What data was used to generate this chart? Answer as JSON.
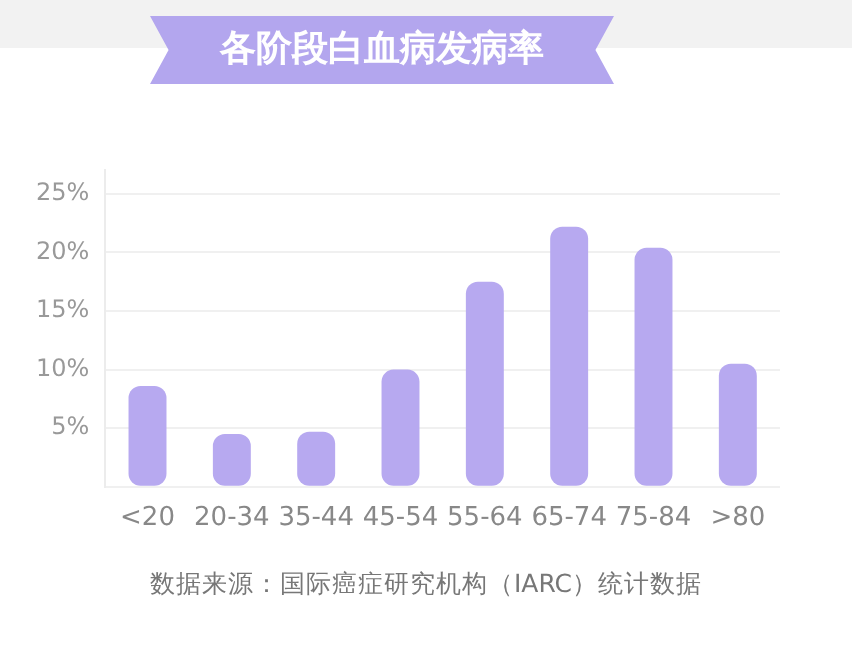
{
  "chart_data": {
    "type": "bar",
    "title": "各阶段白血病发病率",
    "categories": [
      "<20",
      "20-34",
      "35-44",
      "45-54",
      "55-64",
      "65-74",
      "75-84",
      ">80"
    ],
    "values": [
      8.6,
      4.5,
      4.7,
      10.0,
      17.5,
      22.2,
      20.4,
      10.5
    ],
    "color": "#b7a9f0",
    "ylim": [
      0,
      27
    ],
    "yticks": [
      {
        "value": 0,
        "label": null
      },
      {
        "value": 5,
        "label": "5%"
      },
      {
        "value": 10,
        "label": "10%"
      },
      {
        "value": 15,
        "label": "15%"
      },
      {
        "value": 20,
        "label": "20%"
      },
      {
        "value": 25,
        "label": "25%"
      }
    ],
    "grid": "y",
    "annotations": [
      "数据来源：国际癌症研究机构（IARC）统计数据"
    ]
  }
}
